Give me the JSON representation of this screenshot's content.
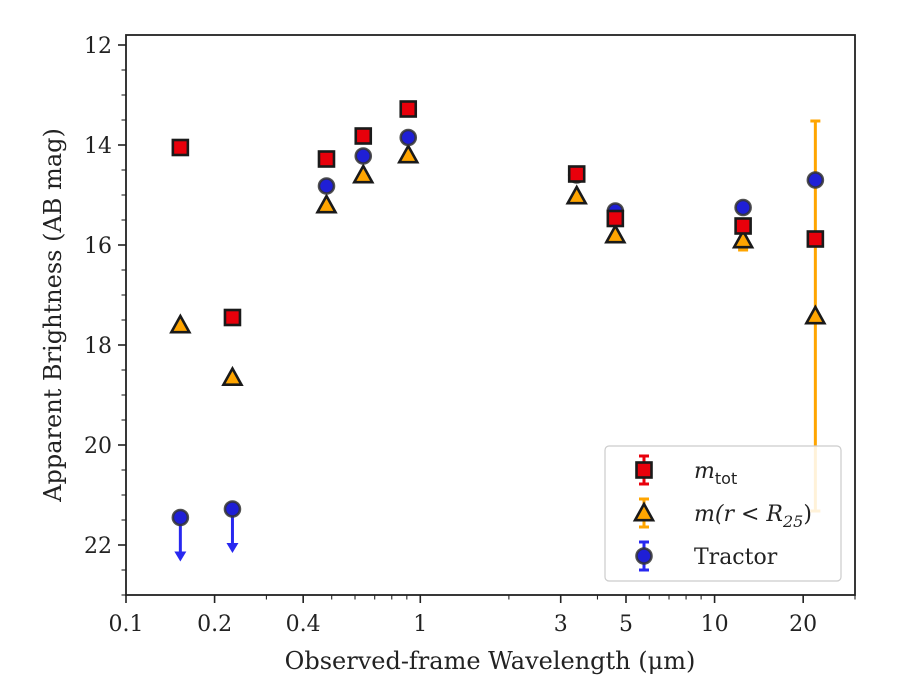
{
  "chart_data": {
    "type": "scatter",
    "xscale": "log",
    "xlim": [
      0.1,
      30
    ],
    "ylim": [
      23,
      11.8
    ],
    "y_inverted": true,
    "grid": false,
    "legend_position": "lower-right",
    "xlabel": "Observed-frame Wavelength (μm)",
    "ylabel": "Apparent Brightness (AB mag)",
    "x_ticks": [
      0.1,
      0.2,
      0.4,
      1,
      3,
      5,
      10,
      20
    ],
    "x_tick_labels": [
      "0.1",
      "0.2",
      "0.4",
      "1",
      "3",
      "5",
      "10",
      "20"
    ],
    "y_ticks": [
      12,
      14,
      16,
      18,
      20,
      22
    ],
    "y_tick_labels": [
      "12",
      "14",
      "16",
      "18",
      "20",
      "22"
    ],
    "series": [
      {
        "name": "m_tot",
        "label_main": "m",
        "label_sub": "tot",
        "marker": "square",
        "color": "#e8000b",
        "errcolor": "#e8000b",
        "points": [
          {
            "x": 0.153,
            "y": 14.05,
            "err": 0
          },
          {
            "x": 0.23,
            "y": 17.45,
            "err": 0
          },
          {
            "x": 0.48,
            "y": 14.28,
            "err": 0
          },
          {
            "x": 0.64,
            "y": 13.82,
            "err": 0
          },
          {
            "x": 0.91,
            "y": 13.28,
            "err": 0
          },
          {
            "x": 3.4,
            "y": 14.58,
            "err": 0
          },
          {
            "x": 4.6,
            "y": 15.47,
            "err": 0
          },
          {
            "x": 12.5,
            "y": 15.62,
            "err": 0.1
          },
          {
            "x": 22.0,
            "y": 15.88,
            "err": 0
          }
        ]
      },
      {
        "name": "m(r < R25)",
        "label_main": "m(r < R",
        "label_sub": "25",
        "label_end": ")",
        "marker": "triangle",
        "color": "#ffa500",
        "errcolor": "#ffa500",
        "points": [
          {
            "x": 0.153,
            "y": 17.6,
            "err": 0
          },
          {
            "x": 0.23,
            "y": 18.65,
            "err": 0
          },
          {
            "x": 0.48,
            "y": 15.2,
            "err": 0
          },
          {
            "x": 0.64,
            "y": 14.6,
            "err": 0
          },
          {
            "x": 0.91,
            "y": 14.2,
            "err": 0
          },
          {
            "x": 3.4,
            "y": 15.02,
            "err": 0
          },
          {
            "x": 4.6,
            "y": 15.8,
            "err": 0
          },
          {
            "x": 12.5,
            "y": 15.9,
            "err": 0.2
          },
          {
            "x": 22.0,
            "y": 17.42,
            "err": 3.9
          }
        ]
      },
      {
        "name": "Tractor",
        "label_main": "Tractor",
        "marker": "circle",
        "color": "#1f1fd6",
        "errcolor": "#2828f0",
        "points": [
          {
            "x": 0.153,
            "y": 21.45,
            "err": 0,
            "upper_limit": true
          },
          {
            "x": 0.23,
            "y": 21.28,
            "err": 0,
            "upper_limit": true
          },
          {
            "x": 0.48,
            "y": 14.82,
            "err": 0
          },
          {
            "x": 0.64,
            "y": 14.22,
            "err": 0
          },
          {
            "x": 0.91,
            "y": 13.85,
            "err": 0
          },
          {
            "x": 3.4,
            "y": 14.6,
            "err": 0
          },
          {
            "x": 4.6,
            "y": 15.32,
            "err": 0
          },
          {
            "x": 12.5,
            "y": 15.25,
            "err": 0
          },
          {
            "x": 22.0,
            "y": 14.7,
            "err": 0
          }
        ]
      }
    ]
  }
}
